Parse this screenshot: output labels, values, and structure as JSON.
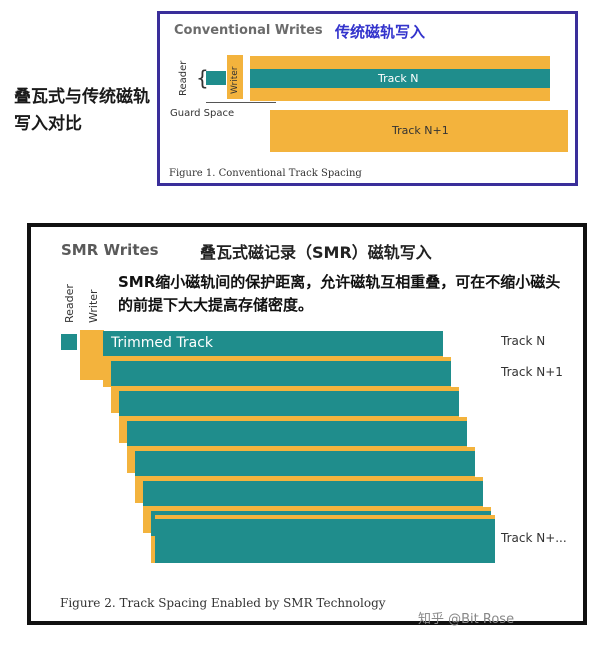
{
  "side_title": "叠瓦式与传统磁轨写入对比",
  "figure1": {
    "title": "Conventional Writes",
    "title_cn": "传统磁轨写入",
    "reader_label": "Reader",
    "writer_label": "Writer",
    "guard_label": "Guard Space",
    "track_n": "Track N",
    "track_n1": "Track N+1",
    "caption": "Figure 1. Conventional Track Spacing",
    "colors": {
      "frame": "#3a2e9a",
      "gold": "#f3b33d",
      "teal": "#1f8d8c"
    }
  },
  "figure2": {
    "title": "SMR Writes",
    "title_cn": "叠瓦式磁记录（SMR）磁轨写入",
    "description": "SMR缩小磁轨间的保护距离，允许磁轨互相重叠，可在不缩小磁头的前提下大大提高存储密度。",
    "reader_label": "Reader",
    "writer_label": "Writer",
    "trimmed_label": "Trimmed Track",
    "track_labels": [
      "Track N",
      "Track N+1",
      "Track N+..."
    ],
    "caption": "Figure 2. Track Spacing Enabled by SMR Technology",
    "colors": {
      "frame": "#111111",
      "gold": "#f3b33d",
      "teal": "#1f8d8c"
    }
  },
  "watermark": "知乎 @Bit Rose"
}
